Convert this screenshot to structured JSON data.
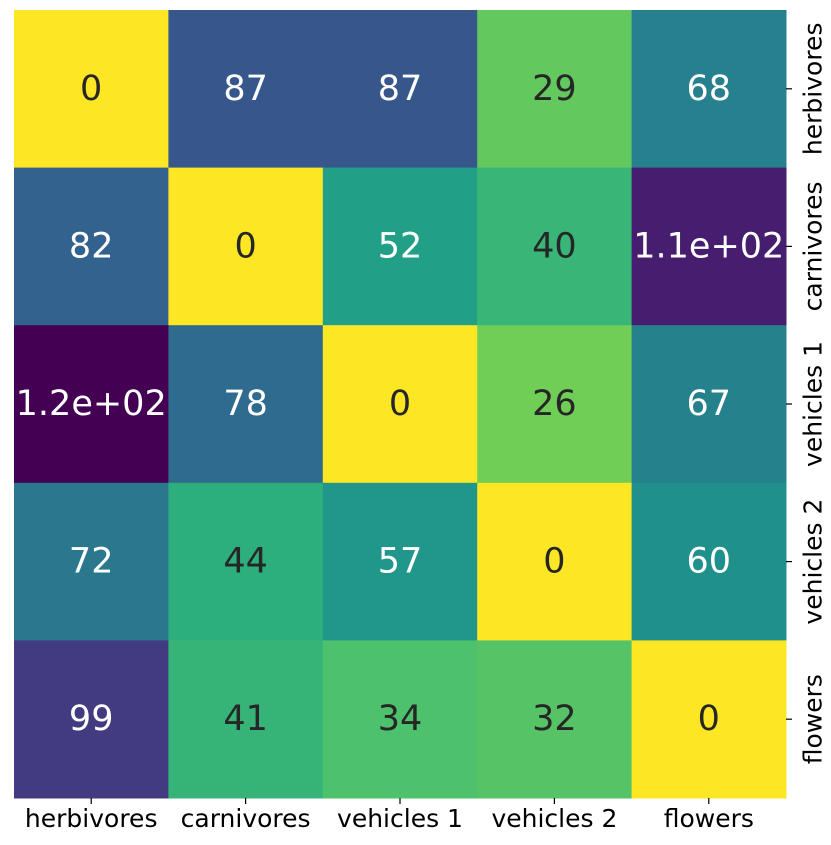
{
  "chart_data": {
    "type": "heatmap",
    "x_categories": [
      "herbivores",
      "carnivores",
      "vehicles 1",
      "vehicles 2",
      "flowers"
    ],
    "y_categories": [
      "herbivores",
      "carnivores",
      "vehicles 1",
      "vehicles 2",
      "flowers"
    ],
    "values": [
      [
        0,
        87,
        87,
        29,
        68
      ],
      [
        82,
        0,
        52,
        40,
        110
      ],
      [
        120,
        78,
        0,
        26,
        67
      ],
      [
        72,
        44,
        57,
        0,
        60
      ],
      [
        99,
        41,
        34,
        32,
        0
      ]
    ],
    "labels": [
      [
        "0",
        "87",
        "87",
        "29",
        "68"
      ],
      [
        "82",
        "0",
        "52",
        "40",
        "1.1e+02"
      ],
      [
        "1.2e+02",
        "78",
        "0",
        "26",
        "67"
      ],
      [
        "72",
        "44",
        "57",
        "0",
        "60"
      ],
      [
        "99",
        "41",
        "34",
        "32",
        "0"
      ]
    ],
    "colormap": "viridis_r",
    "value_range": [
      0,
      120
    ],
    "y_axis_position": "right",
    "colorbar": false,
    "grid": false
  }
}
